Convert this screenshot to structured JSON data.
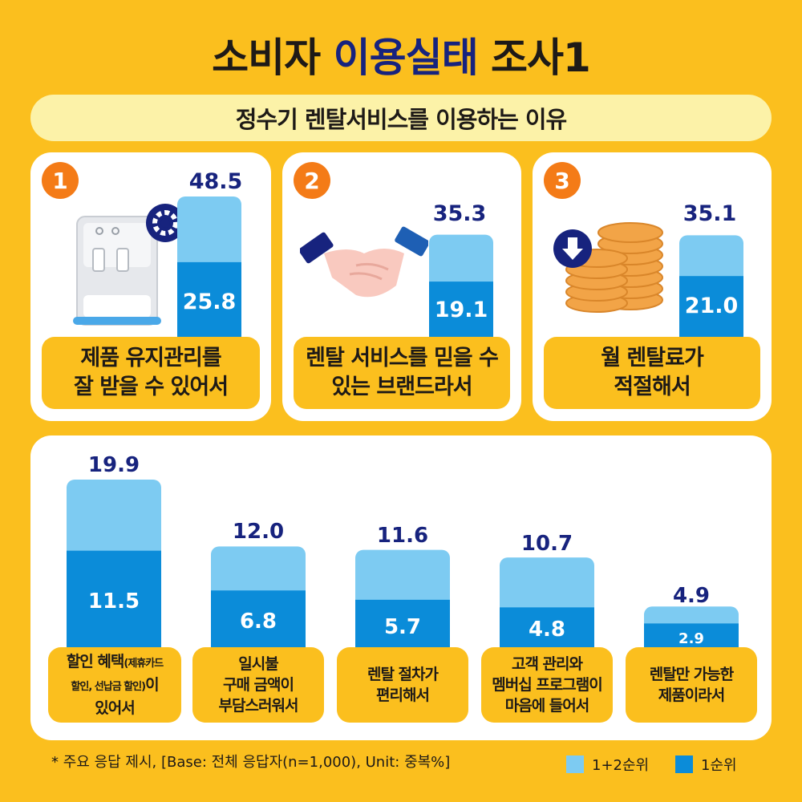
{
  "title": {
    "part1": "소비자",
    "part2": "이용실태",
    "part3": "조사1"
  },
  "subtitle": "정수기 렌탈서비스를 이용하는 이유",
  "colors": {
    "top12": "#7DCBF2",
    "top1": "#0B8CD9",
    "value_text": "#17237E",
    "badge": "#F47B17",
    "background": "#FBBF1E"
  },
  "chart_data": {
    "type": "bar",
    "stacked_overlay": true,
    "categories": [
      "제품 유지관리를 잘 받을 수 있어서",
      "렌탈 서비스를 믿을 수 있는 브랜드라서",
      "월 렌탈료가 적절해서",
      "할인 혜택(제휴카드 할인, 선납금 할인)이 있어서",
      "일시불 구매 금액이 부담스러워서",
      "렌탈 절차가 편리해서",
      "고객 관리와 멤버십 프로그램이 마음에 들어서",
      "렌탈만 가능한 제품이라서"
    ],
    "series": [
      {
        "name": "1+2순위",
        "values": [
          48.5,
          35.3,
          35.1,
          19.9,
          12.0,
          11.6,
          10.7,
          4.9
        ]
      },
      {
        "name": "1순위",
        "values": [
          25.8,
          19.1,
          21.0,
          11.5,
          6.8,
          5.7,
          4.8,
          2.9
        ]
      }
    ],
    "top": [
      {
        "rank": "1",
        "total": "48.5",
        "first": "25.8",
        "label_lines": [
          "제품 유지관리를",
          "잘 받을 수 있어서"
        ],
        "icon": "water-purifier-icon"
      },
      {
        "rank": "2",
        "total": "35.3",
        "first": "19.1",
        "label_lines": [
          "렌탈 서비스를 믿을 수",
          "있는 브랜드라서"
        ],
        "icon": "handshake-icon"
      },
      {
        "rank": "3",
        "total": "35.1",
        "first": "21.0",
        "label_lines": [
          "월 렌탈료가",
          "적절해서"
        ],
        "icon": "coins-icon"
      }
    ],
    "bottom": [
      {
        "total": "19.9",
        "first": "11.5"
      },
      {
        "total": "12.0",
        "first": "6.8"
      },
      {
        "total": "11.6",
        "first": "5.7"
      },
      {
        "total": "10.7",
        "first": "4.8"
      },
      {
        "total": "4.9",
        "first": "2.9"
      }
    ]
  },
  "bottom_labels": [
    {
      "line1": "할인 혜택",
      "line1_small": "(제휴카드",
      "line2": "할인, 선납금 할인)",
      "line2_suffix": "이",
      "line3": "있어서"
    },
    {
      "line1": "일시불",
      "line2": "구매 금액이",
      "line3": "부담스러워서"
    },
    {
      "line1": "렌탈 절차가",
      "line2": "편리해서"
    },
    {
      "line1": "고객 관리와",
      "line2": "멤버십 프로그램이",
      "line3": "마음에 들어서"
    },
    {
      "line1": "렌탈만 가능한",
      "line2": "제품이라서"
    }
  ],
  "footnote": "* 주요 응답 제시, [Base: 전체 응답자(n=1,000), Unit:  중복%]",
  "legend": [
    {
      "label": "1+2순위",
      "color": "#7DCBF2"
    },
    {
      "label": "1순위",
      "color": "#0B8CD9"
    }
  ]
}
